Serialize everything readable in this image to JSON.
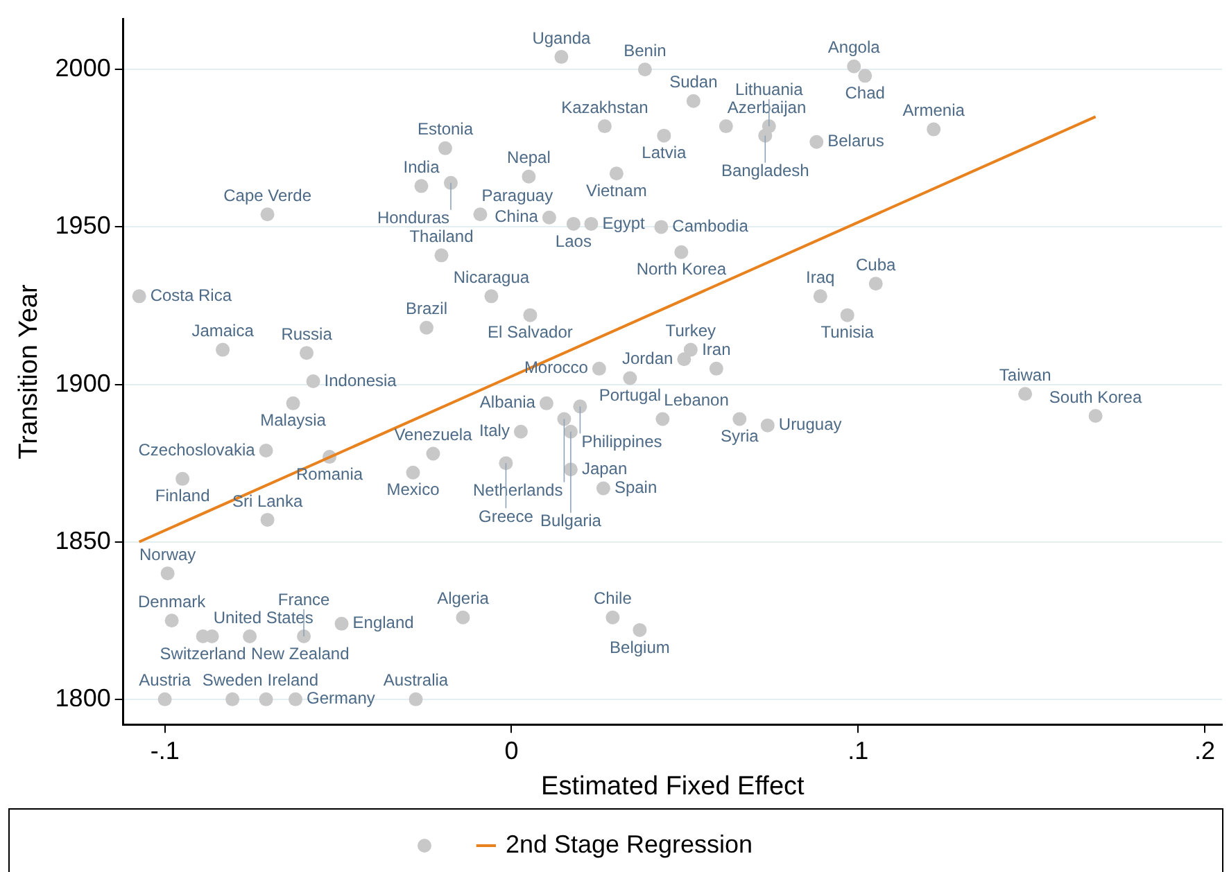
{
  "chart_data": {
    "type": "scatter",
    "xlabel": "Estimated Fixed Effect",
    "ylabel": "Transition Year",
    "xlim": [
      -0.112,
      0.205
    ],
    "ylim": [
      1792,
      2016
    ],
    "xticks": [
      {
        "value": -0.1,
        "label": "-.1"
      },
      0,
      {
        "value": 0.1,
        "label": ".1"
      },
      {
        "value": 0.2,
        "label": ".2"
      }
    ],
    "yticks": [
      1800,
      1850,
      1900,
      1950,
      2000
    ],
    "grid": "y",
    "legend": "bottom",
    "marker": "circle",
    "series": [
      {
        "type": "scatter",
        "color": "#c8c8c8",
        "x": [
          0.0144,
          0.0385,
          0.0525,
          0.0269,
          0.044,
          0.0619,
          0.0743,
          0.0732,
          0.088,
          0.1218,
          0.0988,
          0.102,
          -0.0191,
          -0.026,
          -0.0175,
          0.005,
          0.0303,
          -0.009,
          0.0109,
          0.0179,
          0.023,
          0.0432,
          0.049,
          -0.0704,
          -0.0202,
          -0.1074,
          -0.0058,
          0.0054,
          -0.0245,
          0.0891,
          0.1051,
          0.0969,
          -0.0833,
          -0.0591,
          -0.0572,
          -0.063,
          0.0517,
          0.0498,
          0.0591,
          0.0253,
          0.0342,
          0.1482,
          0.1685,
          0.0101,
          0.0198,
          0.0152,
          0.0027,
          0.0171,
          0.0436,
          0.0658,
          0.0739,
          -0.0708,
          -0.0525,
          -0.0226,
          -0.0284,
          -0.0016,
          -0.0949,
          0.0171,
          0.0265,
          -0.0704,
          -0.0992,
          -0.098,
          -0.089,
          -0.0864,
          -0.0755,
          -0.0599,
          -0.049,
          -0.014,
          0.0292,
          0.037,
          -0.1,
          -0.0805,
          -0.0708,
          -0.0623,
          -0.0276
        ],
        "values": [
          2004,
          2000,
          1990,
          1982,
          1979,
          1982,
          1982,
          1979,
          1977,
          1981,
          2001,
          1998,
          1975,
          1963,
          1964,
          1966,
          1967,
          1954,
          1953,
          1951,
          1951,
          1950,
          1942,
          1954,
          1941,
          1928,
          1928,
          1922,
          1918,
          1928,
          1932,
          1922,
          1911,
          1910,
          1901,
          1894,
          1911,
          1908,
          1905,
          1905,
          1902,
          1897,
          1890,
          1894,
          1893,
          1889,
          1885,
          1885,
          1889,
          1889,
          1887,
          1879,
          1877,
          1878,
          1872,
          1875,
          1870,
          1873,
          1867,
          1857,
          1840,
          1825,
          1820,
          1820,
          1820,
          1820,
          1824,
          1826,
          1826,
          1822,
          1800,
          1800,
          1800,
          1800,
          1800
        ]
      },
      {
        "type": "line",
        "name": "2nd Stage Regression",
        "color": "#e8821e",
        "marker": "none",
        "x": [
          -0.1074,
          0.1685
        ],
        "values": [
          1850,
          1985
        ]
      }
    ],
    "annotations": [
      {
        "text": "Uganda",
        "x": 0.0144,
        "y": 2004
      },
      {
        "text": "Benin",
        "x": 0.0385,
        "y": 2000
      },
      {
        "text": "Sudan",
        "x": 0.0525,
        "y": 1990
      },
      {
        "text": "Kazakhstan",
        "x": 0.0269,
        "y": 1982
      },
      {
        "text": "Latvia",
        "x": 0.044,
        "y": 1979
      },
      {
        "text": "Azerbaijan",
        "x": 0.0619,
        "y": 1982
      },
      {
        "text": "Lithuania",
        "x": 0.0743,
        "y": 1982
      },
      {
        "text": "Bangladesh",
        "x": 0.0732,
        "y": 1979
      },
      {
        "text": "Belarus",
        "x": 0.088,
        "y": 1977
      },
      {
        "text": "Armenia",
        "x": 0.1218,
        "y": 1981
      },
      {
        "text": "Angola",
        "x": 0.0988,
        "y": 2001
      },
      {
        "text": "Chad",
        "x": 0.102,
        "y": 1998
      },
      {
        "text": "Estonia",
        "x": -0.0191,
        "y": 1975
      },
      {
        "text": "India",
        "x": -0.026,
        "y": 1963
      },
      {
        "text": "Honduras",
        "x": -0.0175,
        "y": 1964
      },
      {
        "text": "Nepal",
        "x": 0.005,
        "y": 1966
      },
      {
        "text": "Vietnam",
        "x": 0.0303,
        "y": 1967
      },
      {
        "text": "Paraguay",
        "x": -0.009,
        "y": 1954
      },
      {
        "text": "China",
        "x": 0.0109,
        "y": 1953
      },
      {
        "text": "Laos",
        "x": 0.0179,
        "y": 1951
      },
      {
        "text": "Egypt",
        "x": 0.023,
        "y": 1951
      },
      {
        "text": "Cambodia",
        "x": 0.0432,
        "y": 1950
      },
      {
        "text": "North Korea",
        "x": 0.049,
        "y": 1942
      },
      {
        "text": "Cape Verde",
        "x": -0.0704,
        "y": 1954
      },
      {
        "text": "Thailand",
        "x": -0.0202,
        "y": 1941
      },
      {
        "text": "Costa Rica",
        "x": -0.1074,
        "y": 1928
      },
      {
        "text": "Nicaragua",
        "x": -0.0058,
        "y": 1928
      },
      {
        "text": "El Salvador",
        "x": 0.0054,
        "y": 1922
      },
      {
        "text": "Brazil",
        "x": -0.0245,
        "y": 1918
      },
      {
        "text": "Iraq",
        "x": 0.0891,
        "y": 1928
      },
      {
        "text": "Cuba",
        "x": 0.1051,
        "y": 1932
      },
      {
        "text": "Tunisia",
        "x": 0.0969,
        "y": 1922
      },
      {
        "text": "Jamaica",
        "x": -0.0833,
        "y": 1911
      },
      {
        "text": "Russia",
        "x": -0.0591,
        "y": 1910
      },
      {
        "text": "Indonesia",
        "x": -0.0572,
        "y": 1901
      },
      {
        "text": "Malaysia",
        "x": -0.063,
        "y": 1894
      },
      {
        "text": "Turkey",
        "x": 0.0517,
        "y": 1911
      },
      {
        "text": "Jordan",
        "x": 0.0498,
        "y": 1908
      },
      {
        "text": "Iran",
        "x": 0.0591,
        "y": 1905
      },
      {
        "text": "Morocco",
        "x": 0.0253,
        "y": 1905
      },
      {
        "text": "Portugal",
        "x": 0.0342,
        "y": 1902
      },
      {
        "text": "Taiwan",
        "x": 0.1482,
        "y": 1897
      },
      {
        "text": "South Korea",
        "x": 0.1685,
        "y": 1890
      },
      {
        "text": "Albania",
        "x": 0.0101,
        "y": 1894
      },
      {
        "text": "Philippines",
        "x": 0.0198,
        "y": 1893
      },
      {
        "text": "Netherlands",
        "x": 0.0152,
        "y": 1889
      },
      {
        "text": "Italy",
        "x": 0.0027,
        "y": 1885
      },
      {
        "text": "Bulgaria",
        "x": 0.0171,
        "y": 1885
      },
      {
        "text": "Lebanon",
        "x": 0.0436,
        "y": 1889
      },
      {
        "text": "Syria",
        "x": 0.0658,
        "y": 1889
      },
      {
        "text": "Uruguay",
        "x": 0.0739,
        "y": 1887
      },
      {
        "text": "Czechoslovakia",
        "x": -0.0708,
        "y": 1879
      },
      {
        "text": "Romania",
        "x": -0.0525,
        "y": 1877
      },
      {
        "text": "Venezuela",
        "x": -0.0226,
        "y": 1878
      },
      {
        "text": "Mexico",
        "x": -0.0284,
        "y": 1872
      },
      {
        "text": "Greece",
        "x": -0.0016,
        "y": 1875
      },
      {
        "text": "Finland",
        "x": -0.0949,
        "y": 1870
      },
      {
        "text": "Japan",
        "x": 0.0171,
        "y": 1873
      },
      {
        "text": "Spain",
        "x": 0.0265,
        "y": 1867
      },
      {
        "text": "Sri Lanka",
        "x": -0.0704,
        "y": 1857
      },
      {
        "text": "Norway",
        "x": -0.0992,
        "y": 1840
      },
      {
        "text": "Denmark",
        "x": -0.098,
        "y": 1825
      },
      {
        "text": "Switzerland",
        "x": -0.089,
        "y": 1820
      },
      {
        "text": "United States",
        "x": -0.0864,
        "y": 1820
      },
      {
        "text": "New Zealand",
        "x": -0.0755,
        "y": 1820
      },
      {
        "text": "France",
        "x": -0.0599,
        "y": 1820
      },
      {
        "text": "England",
        "x": -0.049,
        "y": 1824
      },
      {
        "text": "Algeria",
        "x": -0.014,
        "y": 1826
      },
      {
        "text": "Chile",
        "x": 0.0292,
        "y": 1826
      },
      {
        "text": "Belgium",
        "x": 0.037,
        "y": 1822
      },
      {
        "text": "Austria",
        "x": -0.1,
        "y": 1800
      },
      {
        "text": "Sweden",
        "x": -0.0805,
        "y": 1800
      },
      {
        "text": "Ireland",
        "x": -0.0708,
        "y": 1800
      },
      {
        "text": "Germany",
        "x": -0.0623,
        "y": 1800
      },
      {
        "text": "Australia",
        "x": -0.0276,
        "y": 1800
      }
    ]
  }
}
